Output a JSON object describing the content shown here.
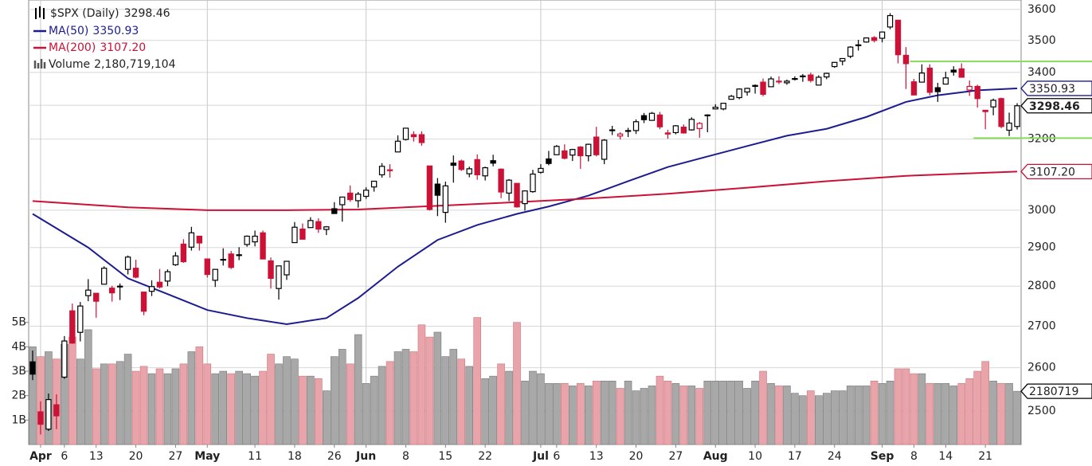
{
  "chart_data": {
    "type": "candlestick",
    "series_name": "$SPX (Daily)",
    "last_label": "3298.46",
    "up_color": "#000000",
    "down_color": "#cc1136",
    "x": [
      "Mar 31",
      "Apr 1",
      "Apr 2",
      "Apr 3",
      "Apr 6",
      "Apr 7",
      "Apr 8",
      "Apr 9",
      "Apr 13",
      "Apr 14",
      "Apr 15",
      "Apr 16",
      "Apr 17",
      "Apr 20",
      "Apr 21",
      "Apr 22",
      "Apr 23",
      "Apr 24",
      "Apr 27",
      "Apr 28",
      "Apr 29",
      "Apr 30",
      "May 1",
      "May 4",
      "May 5",
      "May 6",
      "May 7",
      "May 8",
      "May 11",
      "May 12",
      "May 13",
      "May 14",
      "May 15",
      "May 18",
      "May 19",
      "May 20",
      "May 21",
      "May 22",
      "May 26",
      "May 27",
      "May 28",
      "May 29",
      "Jun 1",
      "Jun 2",
      "Jun 3",
      "Jun 4",
      "Jun 5",
      "Jun 8",
      "Jun 9",
      "Jun 10",
      "Jun 11",
      "Jun 12",
      "Jun 15",
      "Jun 16",
      "Jun 17",
      "Jun 18",
      "Jun 19",
      "Jun 22",
      "Jun 23",
      "Jun 24",
      "Jun 25",
      "Jun 26",
      "Jun 29",
      "Jun 30",
      "Jul 1",
      "Jul 2",
      "Jul 6",
      "Jul 7",
      "Jul 8",
      "Jul 9",
      "Jul 10",
      "Jul 13",
      "Jul 14",
      "Jul 15",
      "Jul 16",
      "Jul 17",
      "Jul 20",
      "Jul 21",
      "Jul 22",
      "Jul 23",
      "Jul 24",
      "Jul 27",
      "Jul 28",
      "Jul 29",
      "Jul 30",
      "Jul 31",
      "Aug 3",
      "Aug 4",
      "Aug 5",
      "Aug 6",
      "Aug 7",
      "Aug 10",
      "Aug 11",
      "Aug 12",
      "Aug 13",
      "Aug 14",
      "Aug 17",
      "Aug 18",
      "Aug 19",
      "Aug 20",
      "Aug 21",
      "Aug 24",
      "Aug 25",
      "Aug 26",
      "Aug 27",
      "Aug 28",
      "Aug 31",
      "Sep 1",
      "Sep 2",
      "Sep 3",
      "Sep 4",
      "Sep 8",
      "Sep 9",
      "Sep 10",
      "Sep 11",
      "Sep 14",
      "Sep 15",
      "Sep 16",
      "Sep 17",
      "Sep 18",
      "Sep 21",
      "Sep 22",
      "Sep 23",
      "Sep 24",
      "Sep 25"
    ],
    "ohlc": [
      [
        2614,
        2641,
        2571,
        2585
      ],
      [
        2498,
        2522,
        2447,
        2470
      ],
      [
        2459,
        2540,
        2455,
        2526
      ],
      [
        2514,
        2538,
        2459,
        2489
      ],
      [
        2578,
        2676,
        2574,
        2664
      ],
      [
        2738,
        2756,
        2657,
        2659
      ],
      [
        2685,
        2760,
        2663,
        2750
      ],
      [
        2776,
        2818,
        2762,
        2790
      ],
      [
        2782,
        2782,
        2721,
        2762
      ],
      [
        2805,
        2851,
        2805,
        2846
      ],
      [
        2795,
        2801,
        2761,
        2783
      ],
      [
        2799,
        2807,
        2765,
        2800
      ],
      [
        2843,
        2879,
        2830,
        2875
      ],
      [
        2846,
        2868,
        2820,
        2823
      ],
      [
        2785,
        2785,
        2727,
        2737
      ],
      [
        2787,
        2815,
        2775,
        2799
      ],
      [
        2810,
        2844,
        2794,
        2798
      ],
      [
        2813,
        2843,
        2800,
        2837
      ],
      [
        2855,
        2888,
        2852,
        2878
      ],
      [
        2909,
        2922,
        2860,
        2863
      ],
      [
        2901,
        2955,
        2892,
        2939
      ],
      [
        2930,
        2931,
        2892,
        2912
      ],
      [
        2870,
        2870,
        2822,
        2830
      ],
      [
        2815,
        2844,
        2798,
        2843
      ],
      [
        2869,
        2898,
        2853,
        2868
      ],
      [
        2883,
        2891,
        2844,
        2848
      ],
      [
        2879,
        2901,
        2867,
        2881
      ],
      [
        2908,
        2932,
        2902,
        2930
      ],
      [
        2915,
        2945,
        2903,
        2930
      ],
      [
        2939,
        2945,
        2869,
        2870
      ],
      [
        2865,
        2874,
        2794,
        2820
      ],
      [
        2794,
        2852,
        2766,
        2852
      ],
      [
        2829,
        2865,
        2816,
        2864
      ],
      [
        2913,
        2968,
        2913,
        2954
      ],
      [
        2949,
        2964,
        2922,
        2922
      ],
      [
        2953,
        2981,
        2953,
        2972
      ],
      [
        2969,
        2978,
        2939,
        2949
      ],
      [
        2948,
        2957,
        2933,
        2955
      ],
      [
        3004,
        3022,
        2990,
        2991
      ],
      [
        3015,
        3036,
        2969,
        3036
      ],
      [
        3047,
        3068,
        3023,
        3029
      ],
      [
        3026,
        3050,
        3007,
        3044
      ],
      [
        3038,
        3063,
        3031,
        3055
      ],
      [
        3064,
        3081,
        3051,
        3080
      ],
      [
        3098,
        3131,
        3090,
        3122
      ],
      [
        3111,
        3128,
        3090,
        3112
      ],
      [
        3163,
        3211,
        3163,
        3194
      ],
      [
        3199,
        3233,
        3196,
        3232
      ],
      [
        3213,
        3223,
        3193,
        3207
      ],
      [
        3213,
        3223,
        3181,
        3190
      ],
      [
        3123,
        3123,
        2999,
        3002
      ],
      [
        3072,
        3089,
        2984,
        3041
      ],
      [
        2994,
        3079,
        2966,
        3067
      ],
      [
        3131,
        3153,
        3076,
        3125
      ],
      [
        3137,
        3141,
        3109,
        3113
      ],
      [
        3101,
        3121,
        3091,
        3115
      ],
      [
        3141,
        3156,
        3084,
        3098
      ],
      [
        3095,
        3121,
        3082,
        3118
      ],
      [
        3138,
        3155,
        3122,
        3131
      ],
      [
        3114,
        3116,
        3033,
        3050
      ],
      [
        3047,
        3086,
        3025,
        3083
      ],
      [
        3074,
        3074,
        3007,
        3009
      ],
      [
        3018,
        3054,
        2999,
        3053
      ],
      [
        3051,
        3112,
        3048,
        3100
      ],
      [
        3105,
        3128,
        3101,
        3116
      ],
      [
        3143,
        3166,
        3125,
        3130
      ],
      [
        3155,
        3183,
        3155,
        3179
      ],
      [
        3166,
        3185,
        3142,
        3145
      ],
      [
        3154,
        3172,
        3137,
        3170
      ],
      [
        3177,
        3180,
        3115,
        3152
      ],
      [
        3152,
        3187,
        3136,
        3185
      ],
      [
        3206,
        3236,
        3150,
        3155
      ],
      [
        3142,
        3200,
        3128,
        3197
      ],
      [
        3226,
        3239,
        3212,
        3227
      ],
      [
        3209,
        3220,
        3199,
        3215
      ],
      [
        3225,
        3233,
        3206,
        3224
      ],
      [
        3225,
        3258,
        3215,
        3251
      ],
      [
        3269,
        3277,
        3247,
        3257
      ],
      [
        3255,
        3280,
        3254,
        3276
      ],
      [
        3271,
        3280,
        3229,
        3236
      ],
      [
        3218,
        3227,
        3201,
        3215
      ],
      [
        3219,
        3241,
        3214,
        3239
      ],
      [
        3235,
        3243,
        3216,
        3218
      ],
      [
        3227,
        3264,
        3225,
        3258
      ],
      [
        3231,
        3250,
        3204,
        3246
      ],
      [
        3270,
        3273,
        3220,
        3271
      ],
      [
        3289,
        3303,
        3289,
        3294
      ],
      [
        3289,
        3307,
        3285,
        3306
      ],
      [
        3318,
        3331,
        3318,
        3327
      ],
      [
        3323,
        3351,
        3318,
        3349
      ],
      [
        3340,
        3353,
        3329,
        3351
      ],
      [
        3357,
        3363,
        3335,
        3360
      ],
      [
        3370,
        3381,
        3327,
        3333
      ],
      [
        3356,
        3387,
        3355,
        3380
      ],
      [
        3373,
        3388,
        3364,
        3373
      ],
      [
        3368,
        3378,
        3362,
        3373
      ],
      [
        3380,
        3388,
        3375,
        3381
      ],
      [
        3387,
        3395,
        3371,
        3389
      ],
      [
        3392,
        3399,
        3369,
        3375
      ],
      [
        3361,
        3391,
        3360,
        3385
      ],
      [
        3386,
        3399,
        3379,
        3397
      ],
      [
        3418,
        3432,
        3414,
        3431
      ],
      [
        3435,
        3444,
        3422,
        3443
      ],
      [
        3450,
        3482,
        3444,
        3479
      ],
      [
        3486,
        3502,
        3468,
        3485
      ],
      [
        3495,
        3510,
        3493,
        3508
      ],
      [
        3509,
        3514,
        3494,
        3500
      ],
      [
        3507,
        3528,
        3494,
        3527
      ],
      [
        3543,
        3588,
        3536,
        3580
      ],
      [
        3565,
        3565,
        3428,
        3455
      ],
      [
        3453,
        3479,
        3349,
        3427
      ],
      [
        3371,
        3380,
        3330,
        3331
      ],
      [
        3370,
        3425,
        3370,
        3398
      ],
      [
        3413,
        3425,
        3330,
        3339
      ],
      [
        3353,
        3368,
        3310,
        3341
      ],
      [
        3364,
        3402,
        3364,
        3383
      ],
      [
        3407,
        3419,
        3390,
        3401
      ],
      [
        3411,
        3428,
        3384,
        3385
      ],
      [
        3346,
        3375,
        3328,
        3357
      ],
      [
        3357,
        3362,
        3293,
        3320
      ],
      [
        3285,
        3285,
        3229,
        3281
      ],
      [
        3295,
        3320,
        3270,
        3315
      ],
      [
        3320,
        3323,
        3232,
        3237
      ],
      [
        3226,
        3278,
        3209,
        3247
      ],
      [
        3237,
        3306,
        3228,
        3298.46
      ]
    ],
    "volume_name": "Volume",
    "volume_label": "2,180,719,104",
    "volume_axis_label": "2180719",
    "volume": [
      4000000000.0,
      3600000000.0,
      3800000000.0,
      3500000000.0,
      4100000000.0,
      4400000000.0,
      3500000000.0,
      4700000000.0,
      3100000000.0,
      3300000000.0,
      3300000000.0,
      3400000000.0,
      3700000000.0,
      3000000000.0,
      3200000000.0,
      2900000000.0,
      3100000000.0,
      2900000000.0,
      3100000000.0,
      3300000000.0,
      3800000000.0,
      4000000000.0,
      3300000000.0,
      2900000000.0,
      3000000000.0,
      2900000000.0,
      3000000000.0,
      2900000000.0,
      2800000000.0,
      3000000000.0,
      3700000000.0,
      3300000000.0,
      3600000000.0,
      3500000000.0,
      2800000000.0,
      2800000000.0,
      2700000000.0,
      2200000000.0,
      3600000000.0,
      3900000000.0,
      3300000000.0,
      4500000000.0,
      2500000000.0,
      2800000000.0,
      3200000000.0,
      3400000000.0,
      3800000000.0,
      3900000000.0,
      3800000000.0,
      4900000000.0,
      4400000000.0,
      4600000000.0,
      3600000000.0,
      3900000000.0,
      3500000000.0,
      3200000000.0,
      5200000000.0,
      2700000000.0,
      2800000000.0,
      3300000000.0,
      3000000000.0,
      5000000000.0,
      2600000000.0,
      3000000000.0,
      2900000000.0,
      2500000000.0,
      2500000000.0,
      2500000000.0,
      2400000000.0,
      2500000000.0,
      2400000000.0,
      2600000000.0,
      2600000000.0,
      2600000000.0,
      2300000000.0,
      2600000000.0,
      2200000000.0,
      2300000000.0,
      2400000000.0,
      2800000000.0,
      2600000000.0,
      2500000000.0,
      2400000000.0,
      2400000000.0,
      2300000000.0,
      2600000000.0,
      2600000000.0,
      2600000000.0,
      2600000000.0,
      2600000000.0,
      2300000000.0,
      2600000000.0,
      3000000000.0,
      2500000000.0,
      2400000000.0,
      2400000000.0,
      2100000000.0,
      2000000000.0,
      2200000000.0,
      2000000000.0,
      2100000000.0,
      2200000000.0,
      2200000000.0,
      2400000000.0,
      2400000000.0,
      2400000000.0,
      2600000000.0,
      2500000000.0,
      2600000000.0,
      3100000000.0,
      3100000000.0,
      2900000000.0,
      2900000000.0,
      2500000000.0,
      2500000000.0,
      2500000000.0,
      2400000000.0,
      2500000000.0,
      2700000000.0,
      3000000000.0,
      3400000000.0,
      2600000000.0,
      2500000000.0,
      2500000000.0,
      2180719104
    ],
    "up_volume_color": "#a8a8a8",
    "down_volume_color": "#e8a3ab",
    "ma": [
      {
        "name": "MA(50)",
        "color": "#1c1c8f",
        "last_label": "3350.93",
        "x": [
          "Mar 31",
          "Apr 9",
          "Apr 17",
          "Apr 24",
          "May 1",
          "May 8",
          "May 15",
          "May 22",
          "May 29",
          "Jun 5",
          "Jun 12",
          "Jun 19",
          "Jun 26",
          "Jul 2",
          "Jul 10",
          "Jul 17",
          "Jul 24",
          "Jul 31",
          "Aug 7",
          "Aug 14",
          "Aug 21",
          "Aug 28",
          "Sep 4",
          "Sep 11",
          "Sep 18",
          "Sep 25"
        ],
        "values": [
          2990,
          2900,
          2820,
          2780,
          2740,
          2720,
          2705,
          2720,
          2770,
          2850,
          2920,
          2960,
          2990,
          3010,
          3040,
          3080,
          3120,
          3150,
          3180,
          3210,
          3230,
          3265,
          3310,
          3330,
          3345,
          3350.93
        ]
      },
      {
        "name": "MA(200)",
        "color": "#cc1136",
        "last_label": "3107.20",
        "x": [
          "Mar 31",
          "Apr 17",
          "May 1",
          "May 15",
          "May 29",
          "Jun 12",
          "Jun 26",
          "Jul 10",
          "Jul 24",
          "Aug 7",
          "Aug 21",
          "Sep 4",
          "Sep 18",
          "Sep 25"
        ],
        "values": [
          3025,
          3008,
          3000,
          3000,
          3002,
          3012,
          3022,
          3032,
          3045,
          3062,
          3080,
          3095,
          3103,
          3107.2
        ]
      }
    ],
    "levels": [
      {
        "value": 3434,
        "from": "Sep 8",
        "color": "#86dc5a"
      },
      {
        "value": 3203,
        "from": "Sep 18",
        "color": "#86dc5a"
      }
    ],
    "ylim": [
      2425,
      3631
    ],
    "log_scale": true,
    "yticks": [
      2500,
      2600,
      2700,
      2800,
      2900,
      3000,
      3200,
      3300,
      3400,
      3500,
      3600
    ],
    "y2lim": [
      0,
      18200000000.0
    ],
    "y2ticks": [
      {
        "value": 1000000000.0,
        "label": "1B"
      },
      {
        "value": 2000000000.0,
        "label": "2B"
      },
      {
        "value": 3000000000.0,
        "label": "3B"
      },
      {
        "value": 4000000000.0,
        "label": "4B"
      },
      {
        "value": 5000000000.0,
        "label": "5B"
      }
    ],
    "xticks": [
      {
        "value": "Apr 1",
        "label": "Apr"
      },
      {
        "value": "Apr 6",
        "label": "6"
      },
      {
        "value": "Apr 13",
        "label": "13"
      },
      {
        "value": "Apr 20",
        "label": "20"
      },
      {
        "value": "Apr 27",
        "label": "27"
      },
      {
        "value": "May 1",
        "label": "May"
      },
      {
        "value": "May 11",
        "label": "11"
      },
      {
        "value": "May 18",
        "label": "18"
      },
      {
        "value": "May 26",
        "label": "26"
      },
      {
        "value": "Jun 1",
        "label": "Jun"
      },
      {
        "value": "Jun 8",
        "label": "8"
      },
      {
        "value": "Jun 15",
        "label": "15"
      },
      {
        "value": "Jun 22",
        "label": "22"
      },
      {
        "value": "Jul 1",
        "label": "Jul"
      },
      {
        "value": "Jul 6",
        "label": "6"
      },
      {
        "value": "Jul 13",
        "label": "13"
      },
      {
        "value": "Jul 20",
        "label": "20"
      },
      {
        "value": "Jul 27",
        "label": "27"
      },
      {
        "value": "Aug 3",
        "label": "Aug"
      },
      {
        "value": "Aug 10",
        "label": "10"
      },
      {
        "value": "Aug 17",
        "label": "17"
      },
      {
        "value": "Aug 24",
        "label": "24"
      },
      {
        "value": "Sep 1",
        "label": "Sep"
      },
      {
        "value": "Sep 8",
        "label": "8"
      },
      {
        "value": "Sep 14",
        "label": "14"
      },
      {
        "value": "Sep 21",
        "label": "21"
      }
    ],
    "grid": true
  }
}
